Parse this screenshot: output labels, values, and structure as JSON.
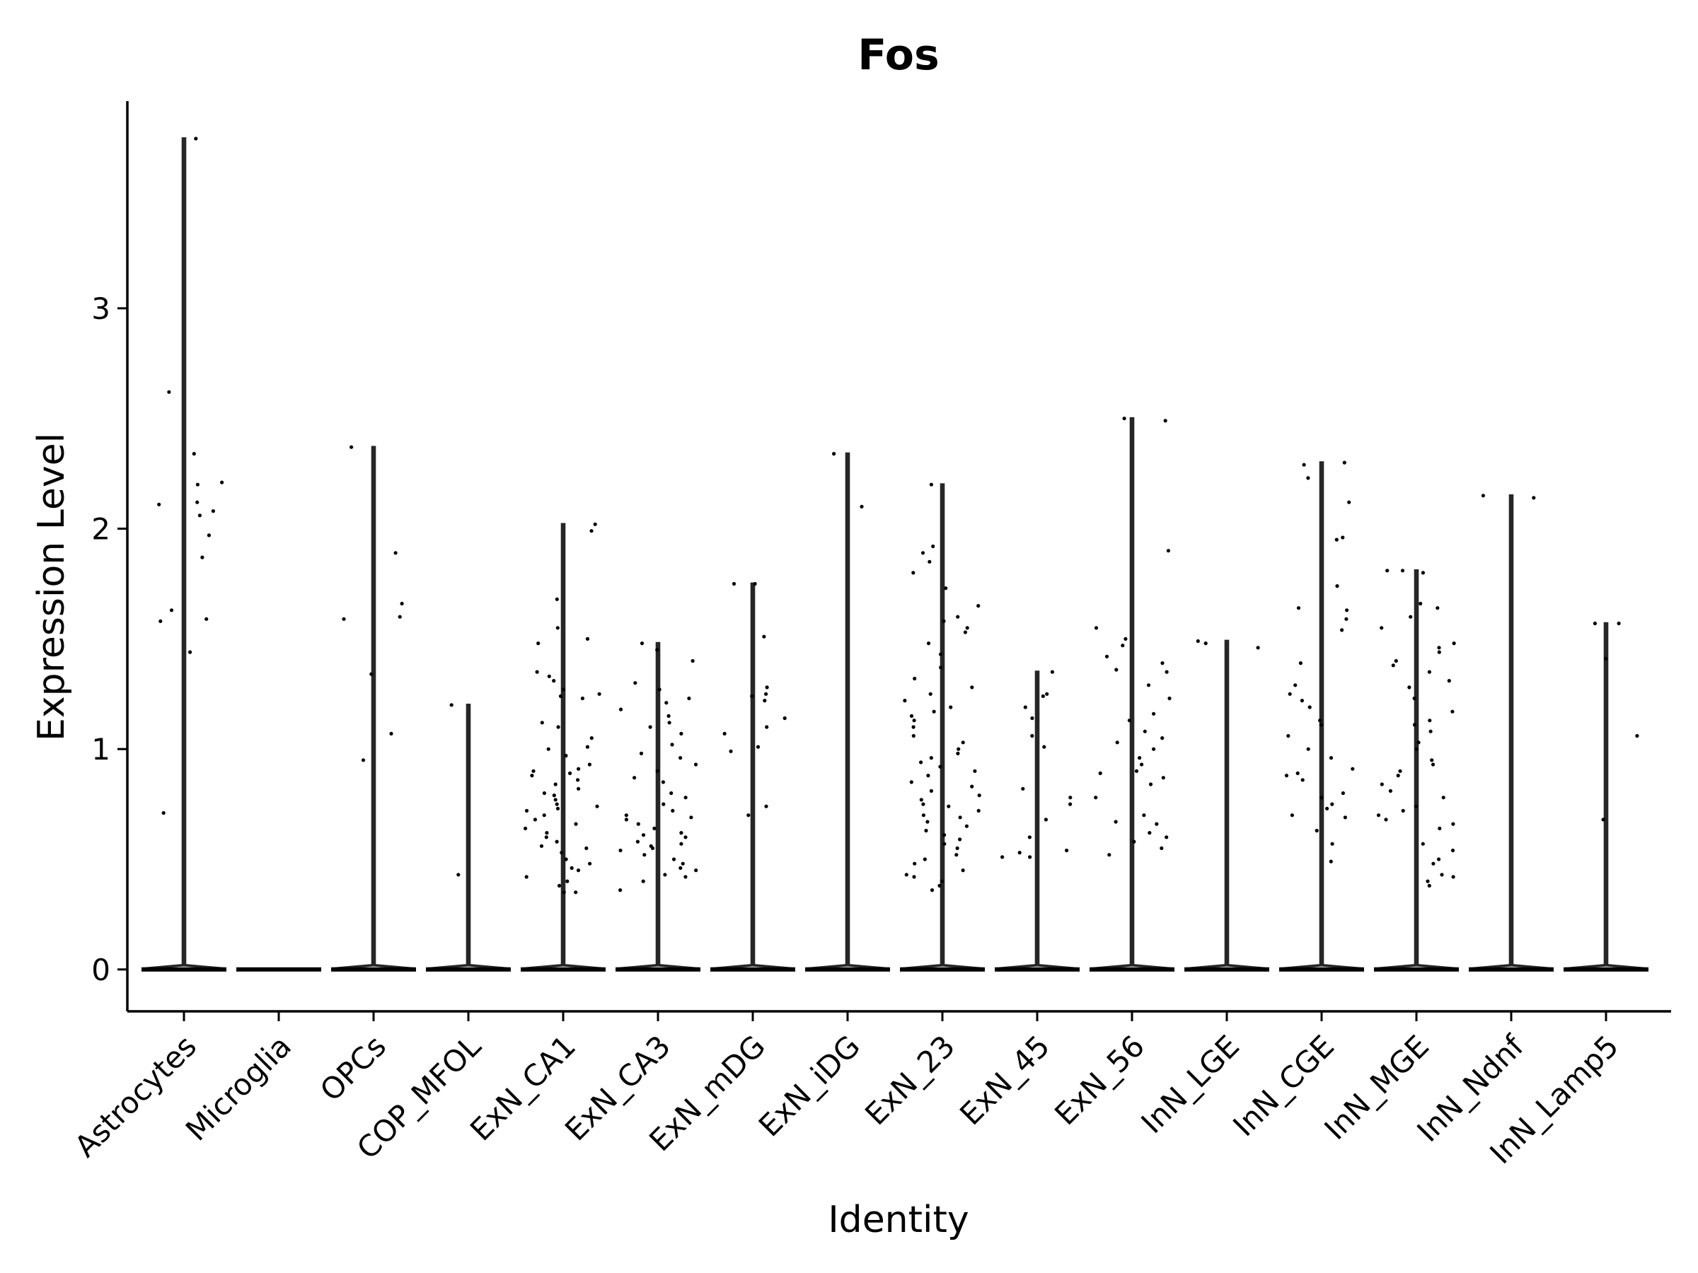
{
  "chart_data": {
    "type": "violin",
    "title": "Fos",
    "xlabel": "Identity",
    "ylabel": "Expression Level",
    "ylim": [
      -0.19,
      3.94
    ],
    "yticks": [
      0,
      1,
      2,
      3
    ],
    "categories": [
      "Astrocytes",
      "Microglia",
      "OPCs",
      "COP_MFOL",
      "ExN_CA1",
      "ExN_CA3",
      "ExN_mDG",
      "ExN_iDG",
      "ExN_23",
      "ExN_45",
      "ExN_56",
      "InN_LGE",
      "InN_CGE",
      "InN_MGE",
      "InN_Ndnf",
      "InN_Lamp5"
    ],
    "max_values": [
      3.77,
      0,
      2.37,
      1.2,
      2.02,
      1.48,
      1.75,
      2.34,
      2.2,
      1.35,
      2.5,
      1.49,
      2.3,
      1.81,
      2.15,
      1.57
    ],
    "median_values": [
      0,
      0,
      0,
      0,
      0,
      0,
      0,
      0,
      0,
      0,
      0,
      0,
      0,
      0,
      0,
      0
    ],
    "nonzero_points": {
      "Astrocytes": [
        3.77,
        2.62,
        2.34,
        2.21,
        2.2,
        2.12,
        2.11,
        2.08,
        2.06,
        1.97,
        1.87,
        1.63,
        1.59,
        1.58,
        1.44,
        0.71
      ],
      "Microglia": [],
      "OPCs": [
        2.37,
        1.89,
        1.66,
        1.6,
        1.59,
        1.34,
        1.07,
        0.95
      ],
      "COP_MFOL": [
        1.2,
        0.43
      ],
      "ExN_CA1": [
        2.02,
        1.99,
        1.68,
        1.55,
        1.5,
        1.48,
        1.35,
        1.33,
        1.31,
        1.27,
        1.25,
        1.24,
        1.23,
        1.12,
        1.1,
        1.05,
        1.01,
        1.0,
        0.97,
        0.93,
        0.91,
        0.9,
        0.89,
        0.88,
        0.86,
        0.84,
        0.82,
        0.8,
        0.79,
        0.77,
        0.75,
        0.74,
        0.73,
        0.72,
        0.7,
        0.68,
        0.66,
        0.64,
        0.62,
        0.6,
        0.58,
        0.56,
        0.55,
        0.53,
        0.5,
        0.48,
        0.46,
        0.45,
        0.42,
        0.4,
        0.38,
        0.35,
        0.35
      ],
      "ExN_CA3": [
        1.48,
        1.45,
        1.4,
        1.3,
        1.27,
        1.23,
        1.21,
        1.18,
        1.15,
        1.12,
        1.1,
        1.07,
        1.02,
        0.98,
        0.96,
        0.93,
        0.9,
        0.87,
        0.85,
        0.8,
        0.78,
        0.75,
        0.72,
        0.7,
        0.69,
        0.68,
        0.66,
        0.64,
        0.62,
        0.61,
        0.6,
        0.58,
        0.57,
        0.56,
        0.55,
        0.54,
        0.52,
        0.5,
        0.48,
        0.46,
        0.45,
        0.43,
        0.42,
        0.4,
        0.36
      ],
      "ExN_mDG": [
        1.75,
        1.75,
        1.51,
        1.28,
        1.25,
        1.24,
        1.22,
        1.14,
        1.1,
        1.07,
        1.01,
        0.99,
        0.74,
        0.7
      ],
      "ExN_iDG": [
        2.34,
        2.1
      ],
      "ExN_23": [
        2.2,
        1.92,
        1.89,
        1.85,
        1.8,
        1.73,
        1.65,
        1.6,
        1.58,
        1.55,
        1.53,
        1.48,
        1.43,
        1.37,
        1.32,
        1.28,
        1.25,
        1.22,
        1.19,
        1.17,
        1.15,
        1.13,
        1.1,
        1.06,
        1.03,
        1.0,
        0.98,
        0.96,
        0.94,
        0.92,
        0.9,
        0.88,
        0.85,
        0.83,
        0.81,
        0.79,
        0.77,
        0.75,
        0.74,
        0.72,
        0.7,
        0.69,
        0.67,
        0.65,
        0.63,
        0.61,
        0.59,
        0.57,
        0.55,
        0.52,
        0.5,
        0.48,
        0.45,
        0.43,
        0.42,
        0.4,
        0.38,
        0.36
      ],
      "ExN_45": [
        1.35,
        1.25,
        1.24,
        1.19,
        1.14,
        1.06,
        1.01,
        0.82,
        0.78,
        0.75,
        0.68,
        0.6,
        0.54,
        0.53,
        0.51,
        0.51
      ],
      "ExN_56": [
        2.5,
        2.49,
        1.9,
        1.55,
        1.5,
        1.47,
        1.42,
        1.39,
        1.36,
        1.35,
        1.29,
        1.23,
        1.16,
        1.13,
        1.08,
        1.05,
        1.03,
        1.0,
        0.96,
        0.93,
        0.9,
        0.89,
        0.87,
        0.84,
        0.78,
        0.7,
        0.67,
        0.66,
        0.62,
        0.6,
        0.58,
        0.55,
        0.52
      ],
      "InN_LGE": [
        1.49,
        1.48,
        1.46
      ],
      "InN_CGE": [
        2.3,
        2.29,
        2.23,
        2.12,
        1.96,
        1.95,
        1.74,
        1.64,
        1.63,
        1.59,
        1.54,
        1.39,
        1.29,
        1.25,
        1.22,
        1.19,
        1.13,
        1.11,
        1.06,
        1.0,
        0.96,
        0.91,
        0.89,
        0.88,
        0.86,
        0.8,
        0.78,
        0.75,
        0.73,
        0.7,
        0.69,
        0.63,
        0.57,
        0.49
      ],
      "InN_MGE": [
        1.81,
        1.81,
        1.8,
        1.66,
        1.64,
        1.6,
        1.55,
        1.48,
        1.46,
        1.44,
        1.4,
        1.38,
        1.35,
        1.31,
        1.28,
        1.23,
        1.17,
        1.13,
        1.11,
        1.08,
        1.03,
        1.0,
        0.95,
        0.93,
        0.9,
        0.88,
        0.84,
        0.81,
        0.78,
        0.74,
        0.72,
        0.7,
        0.68,
        0.66,
        0.64,
        0.57,
        0.54,
        0.5,
        0.48,
        0.43,
        0.42,
        0.4,
        0.38
      ],
      "InN_Ndnf": [
        2.15,
        2.14
      ],
      "InN_Lamp5": [
        1.57,
        1.57,
        1.41,
        1.06,
        0.68
      ]
    }
  }
}
